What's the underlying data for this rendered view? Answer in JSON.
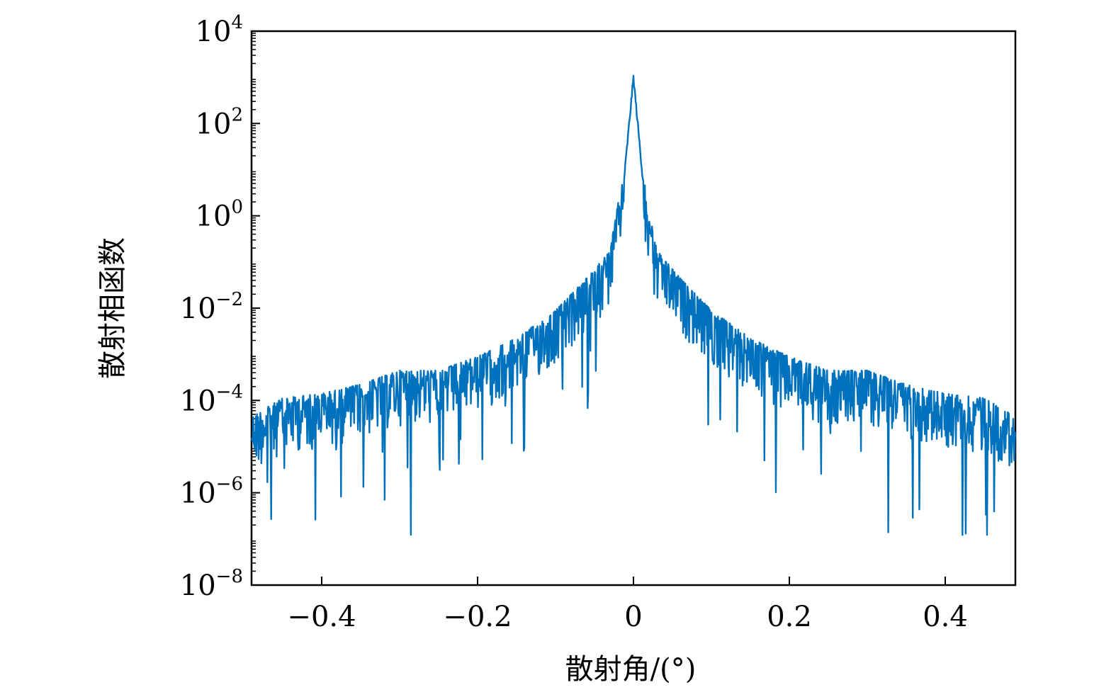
{
  "chart_data": {
    "type": "line",
    "title": "",
    "xlabel": "散射角/(°)",
    "ylabel": "散射相函数",
    "xlim": [
      -0.49,
      0.49
    ],
    "ylim_exponent": [
      -8,
      4
    ],
    "yscale": "log",
    "grid": false,
    "line_color": "#0072bd",
    "x_ticks": [
      -0.4,
      -0.2,
      0,
      0.2,
      0.4
    ],
    "x_tick_labels": [
      "−0.4",
      "−0.2",
      "0",
      "0.2",
      "0.4"
    ],
    "y_tick_exponents": [
      4,
      2,
      0,
      -2,
      -4,
      -6,
      -8
    ],
    "y_tick_labels": [
      {
        "base": "10",
        "exp": "4"
      },
      {
        "base": "10",
        "exp": "2"
      },
      {
        "base": "10",
        "exp": "0"
      },
      {
        "base": "10",
        "exp": "−2"
      },
      {
        "base": "10",
        "exp": "−4"
      },
      {
        "base": "10",
        "exp": "−6"
      },
      {
        "base": "10",
        "exp": "−8"
      }
    ],
    "envelope_log10": [
      [
        -0.49,
        -4.6
      ],
      [
        -0.45,
        -4.2
      ],
      [
        -0.4,
        -4.1
      ],
      [
        -0.35,
        -3.9
      ],
      [
        -0.3,
        -3.6
      ],
      [
        -0.25,
        -3.6
      ],
      [
        -0.2,
        -3.3
      ],
      [
        -0.15,
        -2.9
      ],
      [
        -0.1,
        -2.3
      ],
      [
        -0.06,
        -1.6
      ],
      [
        -0.03,
        -1.0
      ],
      [
        -0.02,
        0.0
      ],
      [
        -0.01,
        0.8
      ],
      [
        0.0,
        3.0
      ],
      [
        0.01,
        0.8
      ],
      [
        0.02,
        0.0
      ],
      [
        0.03,
        -1.0
      ],
      [
        0.06,
        -1.6
      ],
      [
        0.1,
        -2.3
      ],
      [
        0.15,
        -2.9
      ],
      [
        0.2,
        -3.3
      ],
      [
        0.25,
        -3.6
      ],
      [
        0.3,
        -3.6
      ],
      [
        0.35,
        -3.9
      ],
      [
        0.4,
        -4.1
      ],
      [
        0.45,
        -4.2
      ],
      [
        0.49,
        -4.6
      ]
    ]
  }
}
